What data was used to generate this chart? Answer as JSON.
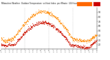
{
  "title": "Milwaukee Weather  Outdoor Temp\nvs Heat Index  per Minute (24H)",
  "bg_color": "#ffffff",
  "line1_color": "#ff8800",
  "line2_color": "#cc1100",
  "legend_color1": "#ff6600",
  "legend_color2": "#cc0000",
  "ylim": [
    10,
    100
  ],
  "yticks": [
    20,
    30,
    40,
    50,
    60,
    70,
    80,
    90
  ],
  "n_points": 1440,
  "vline_positions": [
    360,
    720,
    1080
  ],
  "note": "temp peaks ~88 at minute ~900, starts ~32, heat peaks ~65 at ~850, starts ~20"
}
